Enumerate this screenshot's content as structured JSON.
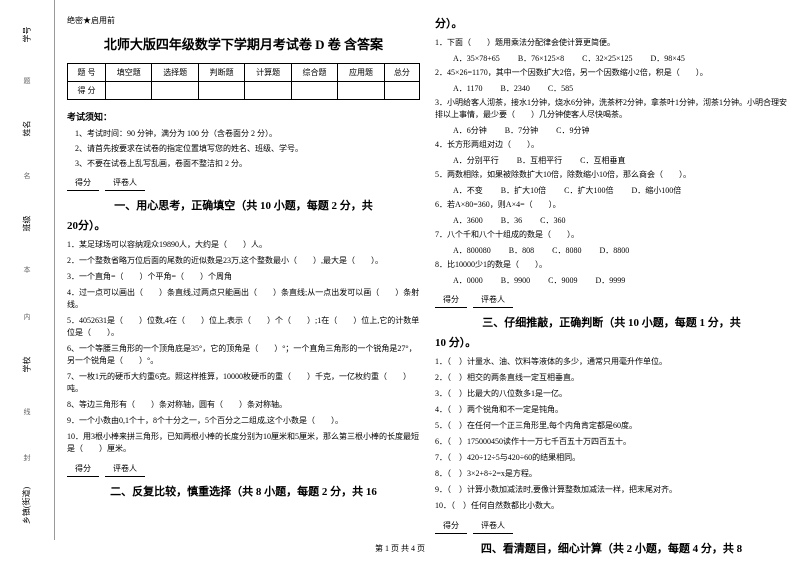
{
  "margin": {
    "items": [
      "学号",
      "姓名",
      "班级",
      "学校",
      "乡镇(街道)"
    ],
    "dashes": [
      "题",
      "名",
      "本",
      "内",
      "线",
      "封"
    ]
  },
  "secret": "绝密★启用前",
  "title": "北师大版四年级数学下学期月考试卷 D 卷 含答案",
  "scoreTable": {
    "headers": [
      "题  号",
      "填空题",
      "选择题",
      "判断题",
      "计算题",
      "综合题",
      "应用题",
      "总分"
    ],
    "row2": "得  分"
  },
  "notice": {
    "title": "考试须知：",
    "items": [
      "1、考试时间：90 分钟，满分为 100 分（含卷面分 2 分）。",
      "2、请首先按要求在试卷的指定位置填写您的姓名、班级、学号。",
      "3、不要在试卷上乱写乱画，卷面不整洁扣 2 分。"
    ]
  },
  "scoreBox": {
    "a": "得分",
    "b": "评卷人"
  },
  "s1": {
    "title": "一、用心思考，正确填空（共 10 小题，每题 2 分，共",
    "sub": "20分）。",
    "q1": "1．某足球场可以容纳观众19890人，大约是（　　）人。",
    "q2": "2．一个整数省略万位后面的尾数的近似数是23万,这个整数最小（　　）,最大是（　　）。",
    "q3a": "3．一个直角=（　　）个平角=（　　）个周角",
    "q3b": "4．过一点可以画出（　　）条直线,过两点只能画出（　　）条直线;从一点出发可以画（　　）条射线。",
    "q5": "5．4052631是（　　）位数,4在（　　）位上,表示（　　）个（　　）;1在（　　）位上,它的计数单位是（　　）。",
    "q6": "6、一个等腰三角形的一个顶角底是35°，它的顶角是（　　）°；一个直角三角形的一个锐角是27°，另一个锐角是（　　）°。",
    "q7": "7、一枚1元的硬币大约重6克。照这样推算，10000枚硬币的重（　　）千克，一亿枚约重（　　）吨。",
    "q8": "8、等边三角形有（　　）条对称轴，圆有（　　）条对称轴。",
    "q9": "9．一个小数由0,1个十，8个十分之一，5个百分之二组成,这个小数是（　　）。",
    "q10": "10．用3根小棒来拼三角形，已知两根小棒的长度分别为10厘米和5厘米，那么第三根小棒的长度最短是（　　）厘米。"
  },
  "s2": {
    "title": "二、反复比较，慎重选择（共 8 小题，每题 2 分，共 16",
    "sub": "分）。",
    "q1": "1．下面（　　）题用乘法分配律会使计算更简便。",
    "q1o": [
      "A．35×78+65",
      "B．76×125×8",
      "C．32×25×125",
      "D．98×45"
    ],
    "q2": "2．45×26=1170，其中一个因数扩大2倍，另一个因数缩小2倍，积是（　　）。",
    "q2o": [
      "A．1170",
      "B．2340",
      "C．585",
      ""
    ],
    "q3": "3．小明给客人沏茶，接水1分钟，烧水6分钟，洗茶杯2分钟，拿茶叶1分钟，沏茶1分钟。小明合理安排以上事情，最少要（　　）几分钟使客人尽快喝茶。",
    "q3o": [
      "A．6分钟",
      "B．7分钟",
      "C．9分钟",
      ""
    ],
    "q4": "4．长方形两组对边（　　）。",
    "q4o": [
      "A．分别平行",
      "B．互相平行",
      "C．互相垂直",
      ""
    ],
    "q5": "5．两数相除，如果被除数扩大10倍，除数缩小10倍，那么商会（　　）。",
    "q5o": [
      "A．不变",
      "B．扩大10倍",
      "C．扩大100倍",
      "D．缩小100倍"
    ],
    "q6": "6．若A×80=360，则A×4=（　　）。",
    "q6o": [
      "A．3600",
      "B．36",
      "C．360",
      ""
    ],
    "q7": "7．八个千和八个十组成的数是（　　）。",
    "q7o": [
      "A．800080",
      "B．808",
      "C．8080",
      "D．8800"
    ],
    "q8": "8．比10000少1的数是（　　）。",
    "q8o": [
      "A．0000",
      "B．9900",
      "C．9009",
      "D．9999"
    ]
  },
  "s3": {
    "title": "三、仔细推敲，正确判断（共 10 小题，每题 1 分，共",
    "sub": "10 分）。",
    "items": [
      "1．（　）计量水、油、饮料等液体的多少，通常只用毫升作单位。",
      "2．（　）相交的两条直线一定互相垂直。",
      "3．（　）比最大的八位数多1是一亿。",
      "4．（　）两个锐角和不一定是钝角。",
      "5．（　）在任何一个正三角形里,每个内角肯定都是60度。",
      "6．（　）175000450读作十一万七千百五十万四百五十。",
      "7．（　）420÷12÷5与420÷60的结果相同。",
      "8．（　）3×2+8÷2=x是方程。",
      "9．（　）计算小数加减法时,要像计算整数加减法一样，把末尾对齐。",
      "10．（　）任何自然数都比小数大。"
    ]
  },
  "s4": {
    "title": "四、看清题目，细心计算（共 2 小题，每题 4 分，共 8"
  },
  "footer": "第 1 页 共 4 页"
}
